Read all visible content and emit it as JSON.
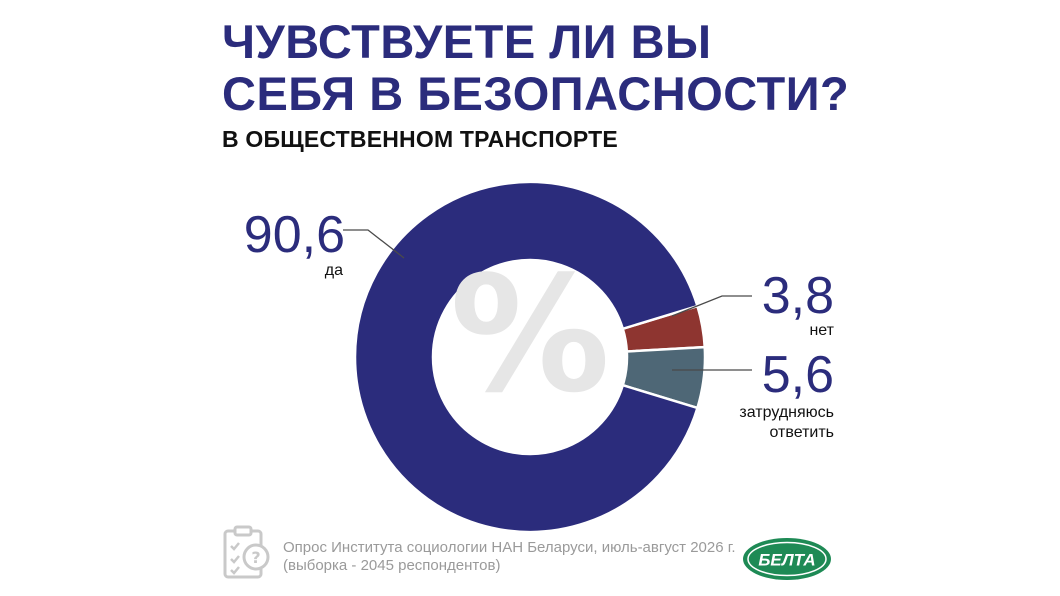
{
  "header": {
    "title_line1": "ЧУВСТВУЕТЕ ЛИ ВЫ",
    "title_line2": "СЕБЯ В БЕЗОПАСНОСТИ?",
    "subtitle": "В ОБЩЕСТВЕННОМ ТРАНСПОРТЕ"
  },
  "chart_data": {
    "type": "pie",
    "title": "ЧУВСТВУЕТЕ ЛИ ВЫ СЕБЯ В БЕЗОПАСНОСТИ?",
    "subtitle": "В ОБЩЕСТВЕННОМ ТРАНСПОРТЕ",
    "donut": true,
    "center_symbol": "%",
    "slices": [
      {
        "label": "да",
        "value": 90.6,
        "display": "90,6",
        "color": "#2b2c7c"
      },
      {
        "label": "нет",
        "value": 3.8,
        "display": "3,8",
        "color": "#8e3530"
      },
      {
        "label": "затрудняюсь ответить",
        "label_lines": [
          "затрудняюсь",
          "ответить"
        ],
        "value": 5.6,
        "display": "5,6",
        "color": "#4e6776"
      }
    ]
  },
  "footer": {
    "source_line1": "Опрос Института социологии НАН Беларуси, июль-август 2026 г.",
    "source_line2": "(выборка - 2045 респондентов)",
    "icon": "clipboard-question-icon",
    "logo_text": "БЕЛТА",
    "logo_color": "#1e8a55"
  }
}
